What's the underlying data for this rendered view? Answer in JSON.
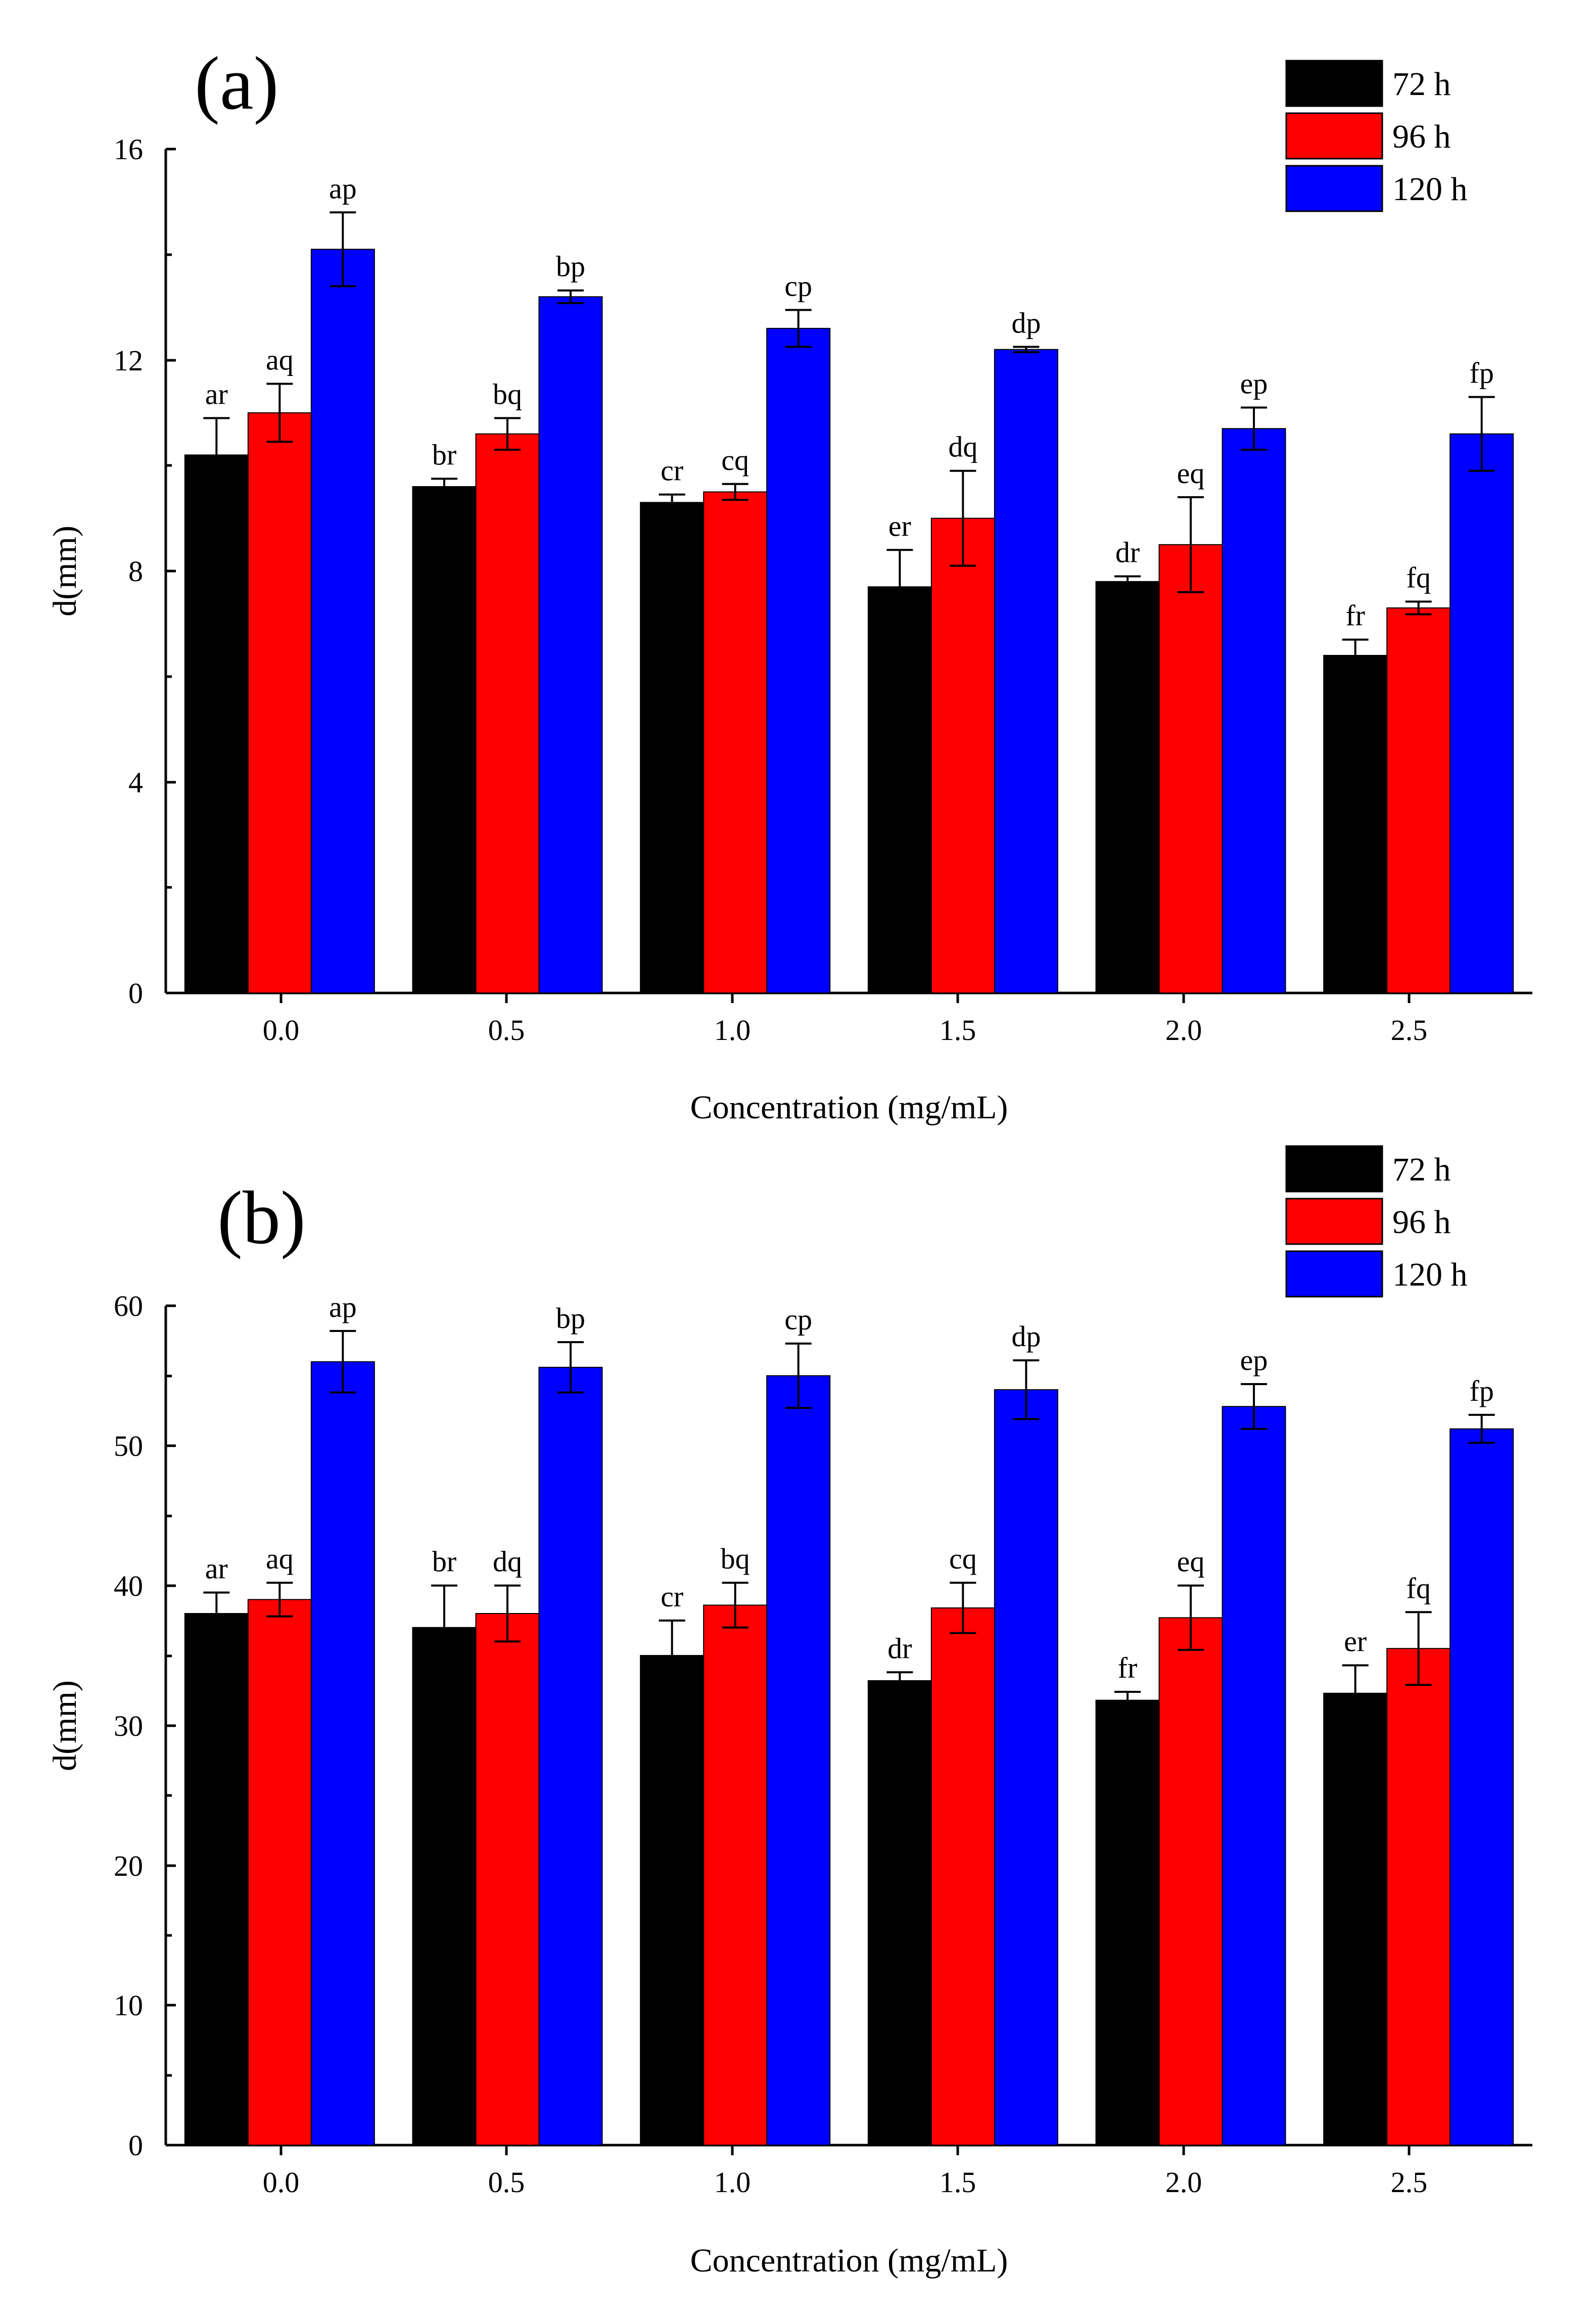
{
  "chart_data": [
    {
      "panel": "(a)",
      "type": "bar",
      "title": "",
      "xlabel": "Concentration (mg/mL)",
      "ylabel": "d(mm)",
      "categories": [
        "0.0",
        "0.5",
        "1.0",
        "1.5",
        "2.0",
        "2.5"
      ],
      "ylim": [
        0,
        16
      ],
      "yticks": [
        "0",
        "4",
        "8",
        "12",
        "16"
      ],
      "legend_position": "top-right",
      "series": [
        {
          "name": "72 h",
          "color": "#000000",
          "values": [
            10.2,
            9.6,
            9.3,
            7.7,
            7.8,
            6.4
          ],
          "errors": [
            0.7,
            0.15,
            0.15,
            0.7,
            0.1,
            0.3
          ],
          "labels": [
            "ar",
            "br",
            "cr",
            "er",
            "dr",
            "fr"
          ]
        },
        {
          "name": "96 h",
          "color": "#ff0000",
          "values": [
            11.0,
            10.6,
            9.5,
            9.0,
            8.5,
            7.3
          ],
          "errors": [
            0.55,
            0.3,
            0.15,
            0.9,
            0.9,
            0.12
          ],
          "labels": [
            "aq",
            "bq",
            "cq",
            "dq",
            "eq",
            "fq"
          ]
        },
        {
          "name": "120 h",
          "color": "#0000ff",
          "values": [
            14.1,
            13.2,
            12.6,
            12.2,
            10.7,
            10.6
          ],
          "errors": [
            0.7,
            0.12,
            0.35,
            0.05,
            0.4,
            0.7
          ],
          "labels": [
            "ap",
            "bp",
            "cp",
            "dp",
            "ep",
            "fp"
          ]
        }
      ]
    },
    {
      "panel": "(b)",
      "type": "bar",
      "title": "",
      "xlabel": "Concentration (mg/mL)",
      "ylabel": "d(mm)",
      "categories": [
        "0.0",
        "0.5",
        "1.0",
        "1.5",
        "2.0",
        "2.5"
      ],
      "ylim": [
        0,
        60
      ],
      "yticks": [
        "0",
        "10",
        "20",
        "30",
        "40",
        "50",
        "60"
      ],
      "legend_position": "top-right",
      "series": [
        {
          "name": "72 h",
          "color": "#000000",
          "values": [
            38.0,
            37.0,
            35.0,
            33.2,
            31.8,
            32.3
          ],
          "errors": [
            1.5,
            3.0,
            2.5,
            0.6,
            0.6,
            2.0
          ],
          "labels": [
            "ar",
            "br",
            "cr",
            "dr",
            "fr",
            "er"
          ]
        },
        {
          "name": "96 h",
          "color": "#ff0000",
          "values": [
            39.0,
            38.0,
            38.6,
            38.4,
            37.7,
            35.5
          ],
          "errors": [
            1.2,
            2.0,
            1.6,
            1.8,
            2.3,
            2.6
          ],
          "labels": [
            "aq",
            "dq",
            "bq",
            "cq",
            "eq",
            "fq"
          ]
        },
        {
          "name": "120 h",
          "color": "#0000ff",
          "values": [
            56.0,
            55.6,
            55.0,
            54.0,
            52.8,
            51.2
          ],
          "errors": [
            2.2,
            1.8,
            2.3,
            2.1,
            1.6,
            1.0
          ],
          "labels": [
            "ap",
            "bp",
            "cp",
            "dp",
            "ep",
            "fp"
          ]
        }
      ]
    }
  ]
}
